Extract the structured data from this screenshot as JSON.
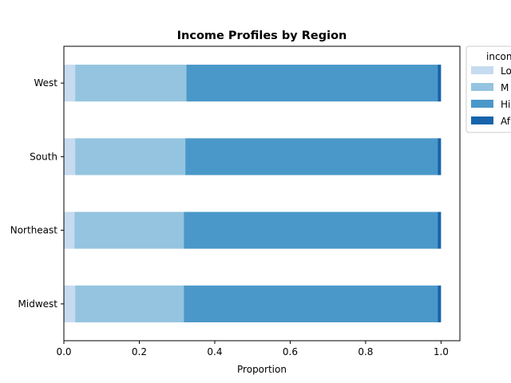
{
  "chart_data": {
    "type": "bar",
    "orientation": "horizontal",
    "stacked": true,
    "title": "Income Profiles by Region",
    "xlabel": "Proportion",
    "ylabel": "",
    "xlim": [
      0.0,
      1.05
    ],
    "x_ticks": [
      0.0,
      0.2,
      0.4,
      0.6,
      0.8,
      1.0
    ],
    "x_tick_labels": [
      "0.0",
      "0.2",
      "0.4",
      "0.6",
      "0.8",
      "1.0"
    ],
    "categories": [
      "West",
      "South",
      "Northeast",
      "Midwest"
    ],
    "grid": false,
    "legend": {
      "title": "incon",
      "placement": "outside top-right",
      "labels": [
        "Lo",
        "M",
        "Hi",
        "Af"
      ]
    },
    "series": [
      {
        "name": "Lo",
        "color": "#c6dbef",
        "values": [
          0.03,
          0.03,
          0.028,
          0.03
        ]
      },
      {
        "name": "M",
        "color": "#94c4df",
        "values": [
          0.295,
          0.292,
          0.29,
          0.288
        ]
      },
      {
        "name": "Hi",
        "color": "#4a98c9",
        "values": [
          0.666,
          0.669,
          0.673,
          0.673
        ]
      },
      {
        "name": "Af",
        "color": "#1764ab",
        "values": [
          0.009,
          0.009,
          0.009,
          0.009
        ]
      }
    ]
  }
}
